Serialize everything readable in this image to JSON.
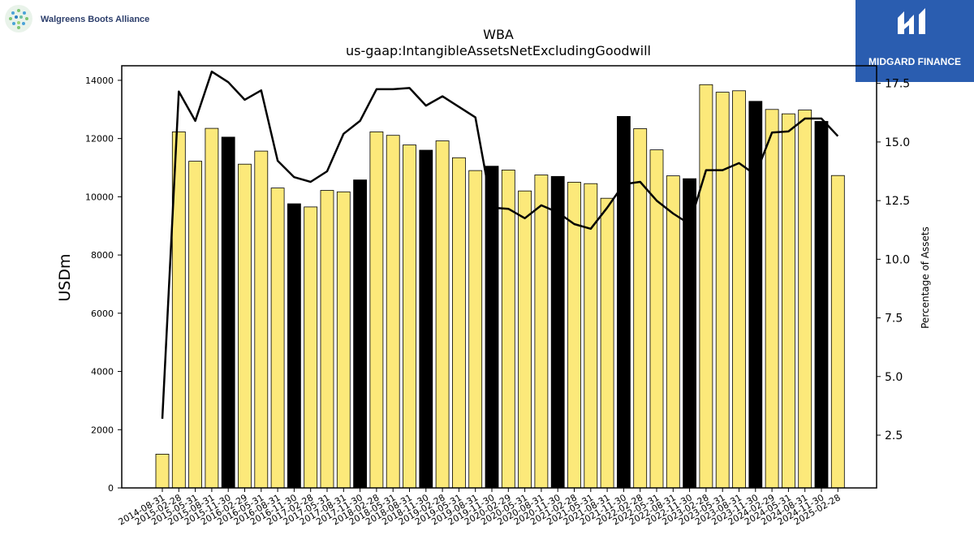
{
  "company_logo": {
    "text": "Walgreens Boots Alliance"
  },
  "brand_logo": {
    "text": "MIDGARD FINANCE"
  },
  "chart_data": {
    "type": "bar",
    "title": "WBA",
    "subtitle": "us-gaap:IntangibleAssetsNetExcludingGoodwill",
    "ylabel": "USDm",
    "y2label": "Percentage of Assets",
    "ylim": [
      0,
      14500
    ],
    "y2lim": [
      0.25,
      18.25
    ],
    "yticks": [
      0,
      2000,
      4000,
      6000,
      8000,
      10000,
      12000,
      14000
    ],
    "y2ticks": [
      "2.5",
      "5.0",
      "7.5",
      "10.0",
      "12.5",
      "15.0",
      "17.5"
    ],
    "grid": false,
    "legend": "none",
    "bar_color": "#fce97a",
    "highlight_color": "#000000",
    "line_color": "#000000",
    "categories": [
      "2014-08-31",
      "2015-02-28",
      "2015-05-31",
      "2015-08-31",
      "2015-11-30",
      "2016-02-29",
      "2016-05-31",
      "2016-08-31",
      "2016-11-30",
      "2017-02-28",
      "2017-05-31",
      "2017-08-31",
      "2017-11-30",
      "2018-02-28",
      "2018-05-31",
      "2018-08-31",
      "2018-11-30",
      "2019-02-28",
      "2019-05-31",
      "2019-08-31",
      "2019-11-30",
      "2020-02-29",
      "2020-05-31",
      "2020-08-31",
      "2020-11-30",
      "2021-02-28",
      "2021-05-31",
      "2021-08-31",
      "2021-11-30",
      "2022-02-28",
      "2022-05-31",
      "2022-08-31",
      "2022-11-30",
      "2023-02-28",
      "2023-05-31",
      "2023-08-31",
      "2023-11-30",
      "2024-02-29",
      "2024-05-31",
      "2024-08-31",
      "2024-11-30",
      "2025-02-28"
    ],
    "values": [
      1160,
      12230,
      11220,
      12350,
      12050,
      11120,
      11570,
      10300,
      9760,
      9650,
      10220,
      10170,
      10580,
      12230,
      12110,
      11780,
      11600,
      11920,
      11340,
      10900,
      11050,
      10920,
      10200,
      10750,
      10700,
      10500,
      10450,
      9950,
      12760,
      12340,
      11610,
      10720,
      10620,
      13850,
      13590,
      13640,
      13280,
      13000,
      12850,
      12980,
      12590,
      10730
    ],
    "highlight": [
      false,
      false,
      false,
      false,
      true,
      false,
      false,
      false,
      true,
      false,
      false,
      false,
      true,
      false,
      false,
      false,
      true,
      false,
      false,
      false,
      true,
      false,
      false,
      false,
      true,
      false,
      false,
      false,
      true,
      false,
      false,
      false,
      true,
      false,
      false,
      false,
      true,
      false,
      false,
      false,
      true,
      false
    ],
    "line_series": {
      "values": [
        3.2,
        17.15,
        15.9,
        18.0,
        17.55,
        16.8,
        17.2,
        14.2,
        13.5,
        13.3,
        13.75,
        15.35,
        15.9,
        17.25,
        17.25,
        17.3,
        16.55,
        16.95,
        16.5,
        16.05,
        12.2,
        12.15,
        11.75,
        12.3,
        12.0,
        11.5,
        11.3,
        12.2,
        13.2,
        13.3,
        12.5,
        11.95,
        11.5,
        13.8,
        13.8,
        14.1,
        13.6,
        15.4,
        15.45,
        16.0,
        16.0,
        15.25
      ]
    }
  }
}
